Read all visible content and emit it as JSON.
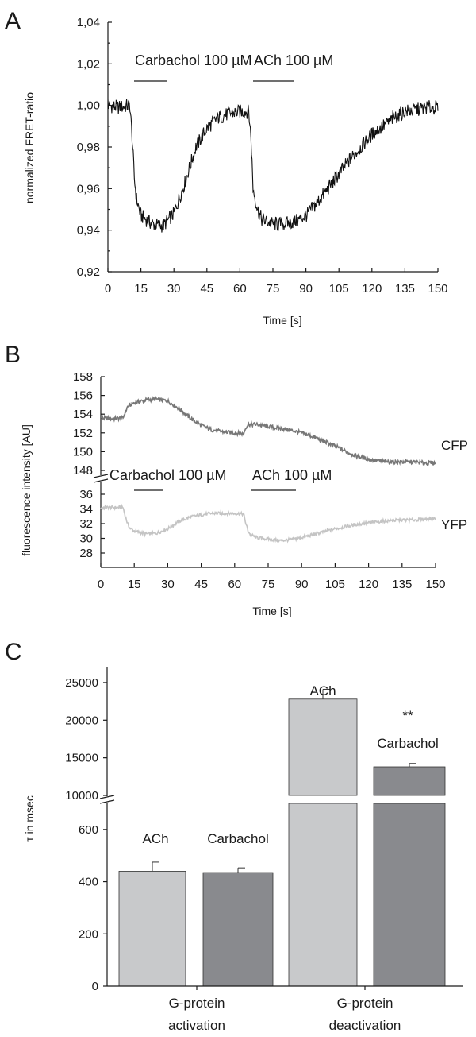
{
  "panels": {
    "a": {
      "letter": "A",
      "ylabel": "normalized FRET-ratio",
      "xlabel": "Time [s]",
      "xticks": [
        "0",
        "15",
        "30",
        "45",
        "60",
        "75",
        "90",
        "105",
        "120",
        "135",
        "150"
      ],
      "yticks": [
        "0,92",
        "0,94",
        "0,96",
        "0,98",
        "1,00",
        "1,02",
        "1,04"
      ],
      "annotations": [
        "Carbachol 100 µM",
        "ACh 100 µM"
      ]
    },
    "b": {
      "letter": "B",
      "ylabel": "fluorescence intensity [AU]",
      "xlabel": "Time [s]",
      "xticks": [
        "0",
        "15",
        "30",
        "45",
        "60",
        "75",
        "90",
        "105",
        "120",
        "135",
        "150"
      ],
      "yticks_upper": [
        "148",
        "150",
        "152",
        "154",
        "156",
        "158"
      ],
      "yticks_lower": [
        "28",
        "30",
        "32",
        "34",
        "36"
      ],
      "annotations": [
        "Carbachol 100 µM",
        "ACh 100 µM"
      ],
      "series_labels": [
        "CFP",
        "YFP"
      ]
    },
    "c": {
      "letter": "C",
      "ylabel": "τ in msec",
      "yticks_upper": [
        "10000",
        "15000",
        "20000",
        "25000"
      ],
      "yticks_lower": [
        "0",
        "200",
        "400",
        "600"
      ],
      "group_labels": [
        [
          "G-protein",
          "activation"
        ],
        [
          "G-protein",
          "deactivation"
        ]
      ],
      "bar_labels": [
        "ACh",
        "Carbachol",
        "ACh",
        "Carbachol"
      ],
      "significance": "**"
    }
  },
  "colors": {
    "trace_a": "#111111",
    "cfp": "#777777",
    "yfp": "#c4c4c4",
    "bar_ach": "#c8c9cb",
    "bar_carbachol": "#898a8e"
  },
  "chart_data": [
    {
      "type": "line",
      "title": "",
      "xlabel": "Time [s]",
      "ylabel": "normalized FRET-ratio",
      "xlim": [
        0,
        150
      ],
      "ylim": [
        0.92,
        1.04
      ],
      "grid": false,
      "series": [
        {
          "x": [
            0,
            5,
            10,
            11,
            12,
            13,
            15,
            20,
            25,
            30,
            35,
            40,
            45,
            50,
            55,
            60,
            64,
            65,
            66,
            68,
            70,
            75,
            80,
            85,
            90,
            95,
            100,
            105,
            110,
            115,
            120,
            125,
            130,
            135,
            140,
            145,
            150
          ],
          "values": [
            1.0,
            0.999,
            1.0,
            0.985,
            0.965,
            0.955,
            0.947,
            0.943,
            0.942,
            0.948,
            0.963,
            0.98,
            0.989,
            0.994,
            0.996,
            0.997,
            0.997,
            0.985,
            0.96,
            0.95,
            0.945,
            0.943,
            0.943,
            0.944,
            0.947,
            0.953,
            0.96,
            0.967,
            0.974,
            0.98,
            0.986,
            0.99,
            0.994,
            0.997,
            0.998,
            0.999,
            0.999
          ]
        }
      ],
      "annotations": [
        {
          "text": "Carbachol 100 µM",
          "x_start": 12,
          "x_end": 28
        },
        {
          "text": "ACh 100 µM",
          "x_start": 66,
          "x_end": 84
        }
      ]
    },
    {
      "type": "line",
      "title": "",
      "xlabel": "Time [s]",
      "ylabel": "fluorescence intensity [AU]",
      "xlim": [
        0,
        150
      ],
      "ylim_upper": [
        147,
        158
      ],
      "ylim_lower": [
        27,
        37
      ],
      "grid": false,
      "series": [
        {
          "name": "CFP",
          "x": [
            0,
            5,
            10,
            12,
            15,
            20,
            25,
            30,
            35,
            40,
            45,
            50,
            55,
            60,
            64,
            65,
            66,
            70,
            75,
            80,
            85,
            90,
            95,
            100,
            105,
            110,
            115,
            120,
            125,
            130,
            135,
            140,
            145,
            150
          ],
          "values": [
            153.6,
            153.5,
            153.6,
            154.8,
            155.2,
            155.5,
            155.6,
            155.4,
            154.6,
            153.6,
            152.8,
            152.3,
            152.1,
            152.0,
            151.9,
            152.6,
            152.9,
            152.9,
            152.7,
            152.5,
            152.3,
            152.0,
            151.6,
            151.1,
            150.6,
            150.0,
            149.5,
            149.2,
            149.0,
            148.9,
            148.9,
            148.9,
            148.8,
            148.8
          ]
        },
        {
          "name": "YFP",
          "x": [
            0,
            5,
            10,
            11,
            12,
            13,
            15,
            20,
            25,
            30,
            35,
            40,
            45,
            50,
            55,
            60,
            64,
            65,
            66,
            67,
            70,
            75,
            80,
            85,
            90,
            95,
            100,
            105,
            110,
            115,
            120,
            125,
            130,
            135,
            140,
            145,
            150
          ],
          "values": [
            34.2,
            34.2,
            34.2,
            33.0,
            32.0,
            31.4,
            31.0,
            30.6,
            30.7,
            31.3,
            32.3,
            32.9,
            33.2,
            33.4,
            33.4,
            33.4,
            33.3,
            32.0,
            31.0,
            30.5,
            30.1,
            29.9,
            29.7,
            29.8,
            30.1,
            30.5,
            30.9,
            31.3,
            31.6,
            31.9,
            32.1,
            32.3,
            32.4,
            32.5,
            32.5,
            32.6,
            32.7
          ]
        }
      ],
      "annotations": [
        {
          "text": "Carbachol 100 µM",
          "x_start": 15,
          "x_end": 27
        },
        {
          "text": "ACh 100 µM",
          "x_start": 66,
          "x_end": 88
        }
      ]
    },
    {
      "type": "bar",
      "title": "",
      "xlabel": "",
      "ylabel": "τ in msec",
      "categories": [
        "G-protein activation",
        "G-protein deactivation"
      ],
      "ylim_lower": [
        0,
        700
      ],
      "ylim_upper": [
        10000,
        27000
      ],
      "axis_break": true,
      "series": [
        {
          "name": "ACh",
          "values": [
            440,
            22800
          ],
          "errors": [
            35,
            1300
          ]
        },
        {
          "name": "Carbachol",
          "values": [
            435,
            13800
          ],
          "errors": [
            18,
            450
          ]
        }
      ],
      "significance": [
        {
          "category": "G-protein deactivation",
          "series": "Carbachol",
          "text": "**"
        }
      ]
    }
  ]
}
